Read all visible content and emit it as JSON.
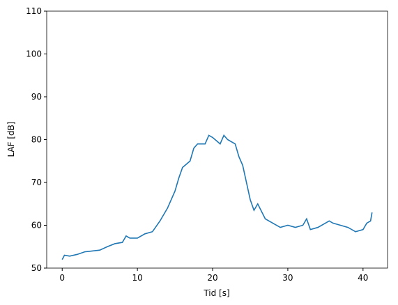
{
  "chart_data": {
    "type": "line",
    "x_label": "Tid [s]",
    "y_label": "LAF [dB]",
    "series": [
      {
        "color": "#1f77b4",
        "x": [
          0,
          0.3,
          1,
          2,
          3,
          4,
          5,
          6,
          7,
          8,
          8.5,
          9,
          10,
          11,
          12,
          13,
          14,
          15,
          15.5,
          16,
          17,
          17.5,
          18,
          19,
          19.5,
          20,
          21,
          21.5,
          22,
          23,
          23.5,
          24,
          24.5,
          25,
          25.5,
          26,
          27,
          28,
          29,
          30,
          31,
          32,
          32.5,
          33,
          34,
          35,
          35.5,
          36,
          37,
          38,
          39,
          40,
          40.5,
          41,
          41.2
        ],
        "values": [
          52,
          53,
          52.8,
          53.2,
          53.8,
          54,
          54.2,
          55,
          55.7,
          56,
          57.5,
          57,
          57,
          58,
          58.5,
          61,
          64,
          68,
          71,
          73.5,
          75,
          78,
          79,
          79,
          81,
          80.5,
          79,
          81,
          80,
          79,
          76,
          74,
          70,
          66,
          63.5,
          65,
          61.5,
          60.5,
          59.5,
          60,
          59.5,
          60,
          61.5,
          59,
          59.5,
          60.5,
          61,
          60.5,
          60,
          59.5,
          58.5,
          59,
          60.5,
          61,
          63
        ]
      }
    ],
    "xlim": [
      -2.06,
      43.26
    ],
    "ylim": [
      50,
      110
    ],
    "xticks": [
      0,
      10,
      20,
      30,
      40
    ],
    "yticks": [
      50,
      60,
      70,
      80,
      90,
      100,
      110
    ]
  }
}
